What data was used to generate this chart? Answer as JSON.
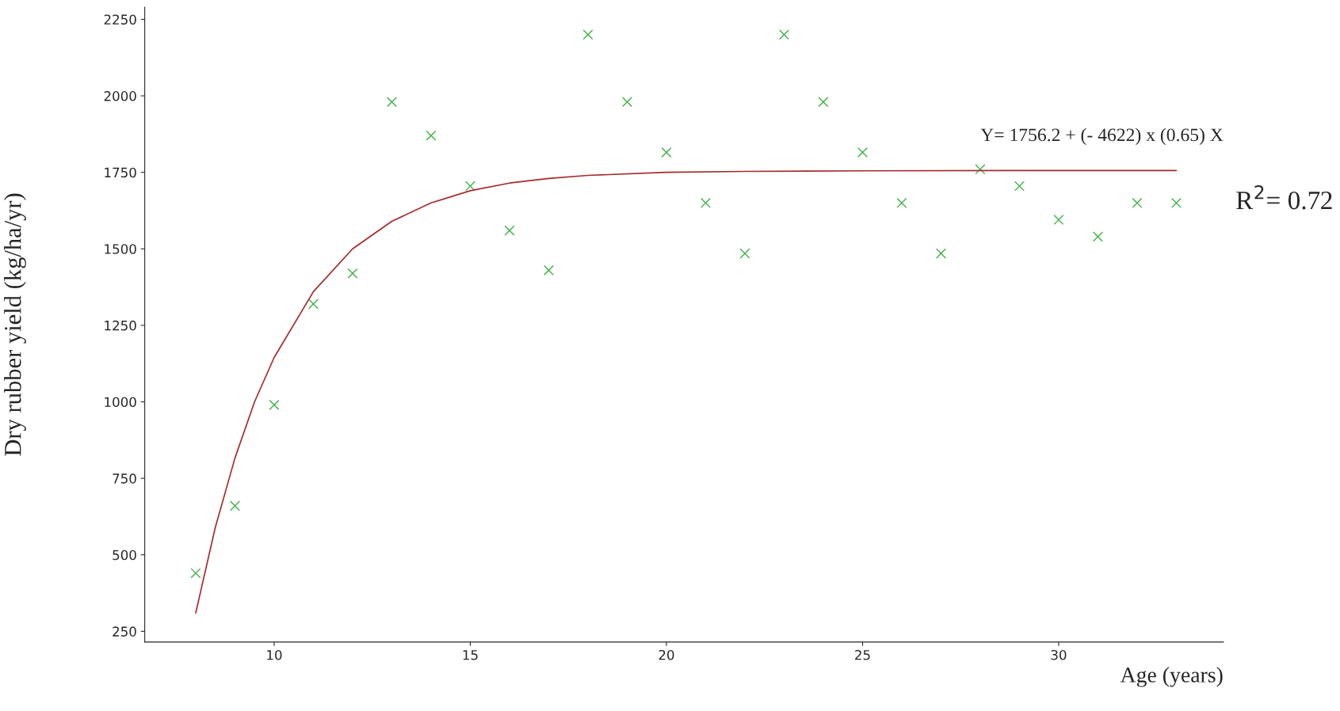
{
  "chart_data": {
    "type": "scatter",
    "xlabel": "Age (years)",
    "ylabel": "Dry rubber yield (kg/ha/yr)",
    "xlim": [
      6.7,
      34.2
    ],
    "xticks": [
      10,
      15,
      20,
      25,
      30
    ],
    "ylim": [
      215,
      2290
    ],
    "yticks": [
      250,
      500,
      750,
      1000,
      1250,
      1500,
      1750,
      2000,
      2250
    ],
    "grid": false,
    "legend": false,
    "series": [
      {
        "marker": "cross",
        "color": "#3cb043",
        "x": [
          8,
          9,
          10,
          11,
          12,
          13,
          14,
          15,
          16,
          17,
          18,
          19,
          20,
          21,
          22,
          23,
          24,
          25,
          26,
          27,
          28,
          29,
          30,
          31,
          32,
          33
        ],
        "values": [
          440,
          660,
          990,
          1320,
          1420,
          1980,
          1870,
          1705,
          1560,
          1430,
          2200,
          1980,
          1815,
          1650,
          1485,
          2200,
          1980,
          1815,
          1650,
          1485,
          1760,
          1705,
          1595,
          1540,
          1650,
          1650
        ]
      },
      {
        "type": "line",
        "marker": "none",
        "line_style": "solid",
        "color": "#a52a2a",
        "x": [
          8,
          8.5,
          9,
          9.5,
          10,
          11,
          12,
          13,
          14,
          15,
          16,
          17,
          18,
          20,
          22,
          25,
          30,
          33
        ],
        "values": [
          310,
          590,
          816,
          1000,
          1145,
          1360,
          1500,
          1590,
          1650,
          1690,
          1715,
          1730,
          1740,
          1750,
          1753,
          1755,
          1756,
          1756
        ]
      }
    ],
    "annotations": [
      "Y= 1756.2 + (- 4622) x (0.65) X",
      "R$^{2}$= 0.72"
    ]
  }
}
